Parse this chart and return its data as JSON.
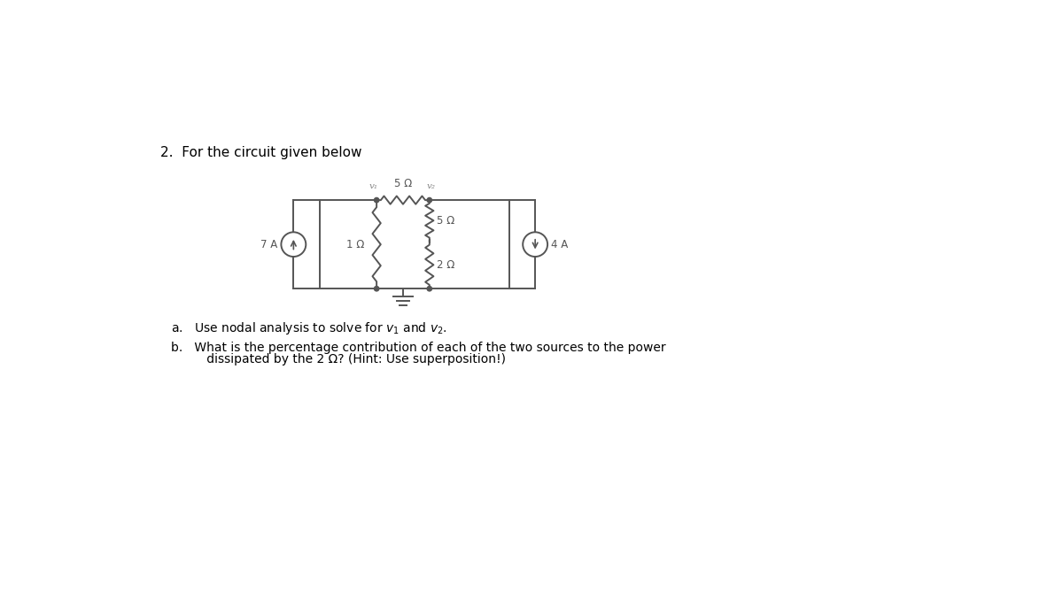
{
  "title_text": "2.  For the circuit given below",
  "question_a": "a.   Use nodal analysis to solve for $v_1$ and $v_2$.",
  "question_b_line1": "b.   What is the percentage contribution of each of the two sources to the power",
  "question_b_line2": "      dissipated by the 2 Ω? (Hint: Use superposition!)",
  "bg_color": "#ffffff",
  "text_color": "#000000",
  "circuit_color": "#555555",
  "source_7A_label": "7 A",
  "source_4A_label": "4 A",
  "res_5ohm_top": "5 Ω",
  "res_5ohm_mid": "5 Ω",
  "res_2ohm": "2 Ω",
  "res_1ohm": "1 Ω",
  "node_v1": "v₁",
  "node_v2": "v₂"
}
